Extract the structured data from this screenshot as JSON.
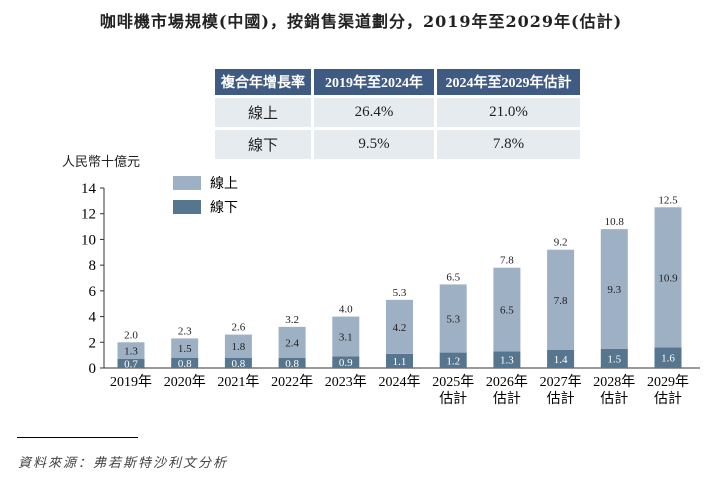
{
  "title": "咖啡機市場規模(中國)，按銷售渠道劃分，2019年至2029年(估計)",
  "cagr_table": {
    "headers": [
      "複合年增長率",
      "2019年至2024年",
      "2024年至2029年估計"
    ],
    "rows": [
      [
        "線上",
        "26.4%",
        "21.0%"
      ],
      [
        "線下",
        "9.5%",
        "7.8%"
      ]
    ]
  },
  "source": "資料來源：弗若斯特沙利文分析",
  "chart_data": {
    "type": "bar",
    "stacked": true,
    "ylabel": "人民幣十億元",
    "ylim": [
      0,
      14
    ],
    "yticks": [
      "0",
      "2",
      "4",
      "6",
      "8",
      "10",
      "12",
      "14"
    ],
    "categories": [
      "2019年",
      "2020年",
      "2021年",
      "2022年",
      "2023年",
      "2024年",
      "2025年\n估計",
      "2026年\n估計",
      "2027年\n估計",
      "2028年\n估計",
      "2029年\n估計"
    ],
    "series": [
      {
        "name": "線下",
        "color": "#56758f",
        "values": [
          0.7,
          0.8,
          0.8,
          0.8,
          0.9,
          1.1,
          1.2,
          1.3,
          1.4,
          1.5,
          1.6
        ]
      },
      {
        "name": "線上",
        "color": "#9eb0c4",
        "values": [
          1.3,
          1.5,
          1.8,
          2.4,
          3.1,
          4.2,
          5.3,
          6.5,
          7.8,
          9.3,
          10.9
        ]
      }
    ],
    "totals": [
      2.0,
      2.3,
      2.6,
      3.2,
      4.0,
      5.3,
      6.5,
      7.8,
      9.2,
      10.8,
      12.5
    ],
    "legend": "top-left"
  }
}
